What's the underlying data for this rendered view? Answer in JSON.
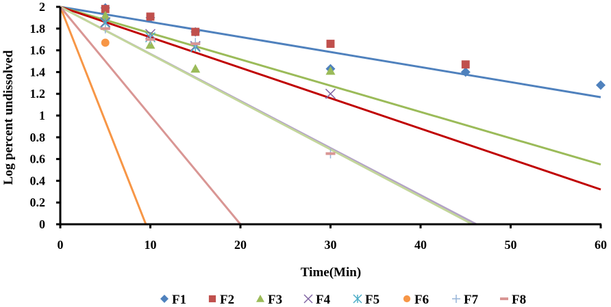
{
  "chart_data": {
    "type": "scatter",
    "title": "",
    "xlabel": "Time(Min)",
    "ylabel": "Log percent undissolved",
    "xlim": [
      0,
      60
    ],
    "ylim": [
      0,
      2
    ],
    "xticks": [
      0,
      10,
      20,
      30,
      40,
      50,
      60
    ],
    "yticks": [
      0,
      0.2,
      0.4,
      0.6,
      0.8,
      1,
      1.2,
      1.4,
      1.6,
      1.8,
      2
    ],
    "ytick_labels": [
      "0",
      "0.2",
      "0.4",
      "0.6",
      "0.8",
      "1",
      "1.2",
      "1.4",
      "1.6",
      "1.8",
      "2"
    ],
    "grid": false,
    "legend_position": "bottom",
    "series": [
      {
        "name": "F1",
        "marker": "diamond",
        "color": "#4f81bd",
        "points": [
          [
            0,
            2
          ],
          [
            5,
            1.99
          ],
          [
            10,
            1.9
          ],
          [
            15,
            1.77
          ],
          [
            30,
            1.43
          ],
          [
            45,
            1.4
          ],
          [
            60,
            1.28
          ]
        ],
        "trend": {
          "slope": -0.01385,
          "intercept": 2,
          "color": "#4f81bd"
        }
      },
      {
        "name": "F2",
        "marker": "square",
        "color": "#c0504d",
        "points": [
          [
            0,
            2
          ],
          [
            5,
            1.98
          ],
          [
            10,
            1.91
          ],
          [
            15,
            1.77
          ],
          [
            30,
            1.66
          ],
          [
            45,
            1.47
          ]
        ],
        "trend": null
      },
      {
        "name": "F3",
        "marker": "triangle",
        "color": "#9bbb59",
        "points": [
          [
            0,
            2
          ],
          [
            5,
            1.92
          ],
          [
            10,
            1.65
          ],
          [
            15,
            1.43
          ],
          [
            30,
            1.41
          ]
        ],
        "trend": {
          "slope": -0.02417,
          "intercept": 2,
          "color": "#9bbb59"
        }
      },
      {
        "name": "F4",
        "marker": "x",
        "color": "#8064a2",
        "points": [
          [
            0,
            2
          ],
          [
            5,
            1.86
          ],
          [
            10,
            1.75
          ],
          [
            15,
            1.64
          ],
          [
            30,
            1.2
          ]
        ],
        "trend": {
          "slope": -0.028,
          "intercept": 2,
          "color": "#c00000"
        }
      },
      {
        "name": "F5",
        "marker": "star",
        "color": "#4bacc6",
        "points": [
          [
            0,
            2
          ],
          [
            5,
            1.85
          ],
          [
            10,
            1.72
          ],
          [
            15,
            1.63
          ]
        ],
        "trend": {
          "slope": -0.0433,
          "intercept": 2,
          "color": "#b3a2c7"
        }
      },
      {
        "name": "F6",
        "marker": "circle",
        "color": "#f79646",
        "points": [
          [
            0,
            2
          ],
          [
            5,
            1.67
          ]
        ],
        "trend": {
          "slope": -0.2105,
          "intercept": 2,
          "color": "#f79646"
        }
      },
      {
        "name": "F7",
        "marker": "plus",
        "color": "#95b3d7",
        "points": [
          [
            0,
            2
          ],
          [
            5,
            1.8
          ],
          [
            10,
            1.7
          ],
          [
            15,
            1.67
          ],
          [
            30,
            0.65
          ]
        ],
        "trend": {
          "slope": -0.0437,
          "intercept": 2,
          "color": "#c3d69b"
        }
      },
      {
        "name": "F8",
        "marker": "dash",
        "color": "#d99694",
        "points": [
          [
            0,
            2
          ],
          [
            5,
            1.8
          ],
          [
            10,
            1.7
          ],
          [
            15,
            1.66
          ],
          [
            30,
            0.65
          ]
        ],
        "trend": {
          "slope": -0.1,
          "intercept": 2,
          "color": "#d99694"
        }
      }
    ]
  }
}
